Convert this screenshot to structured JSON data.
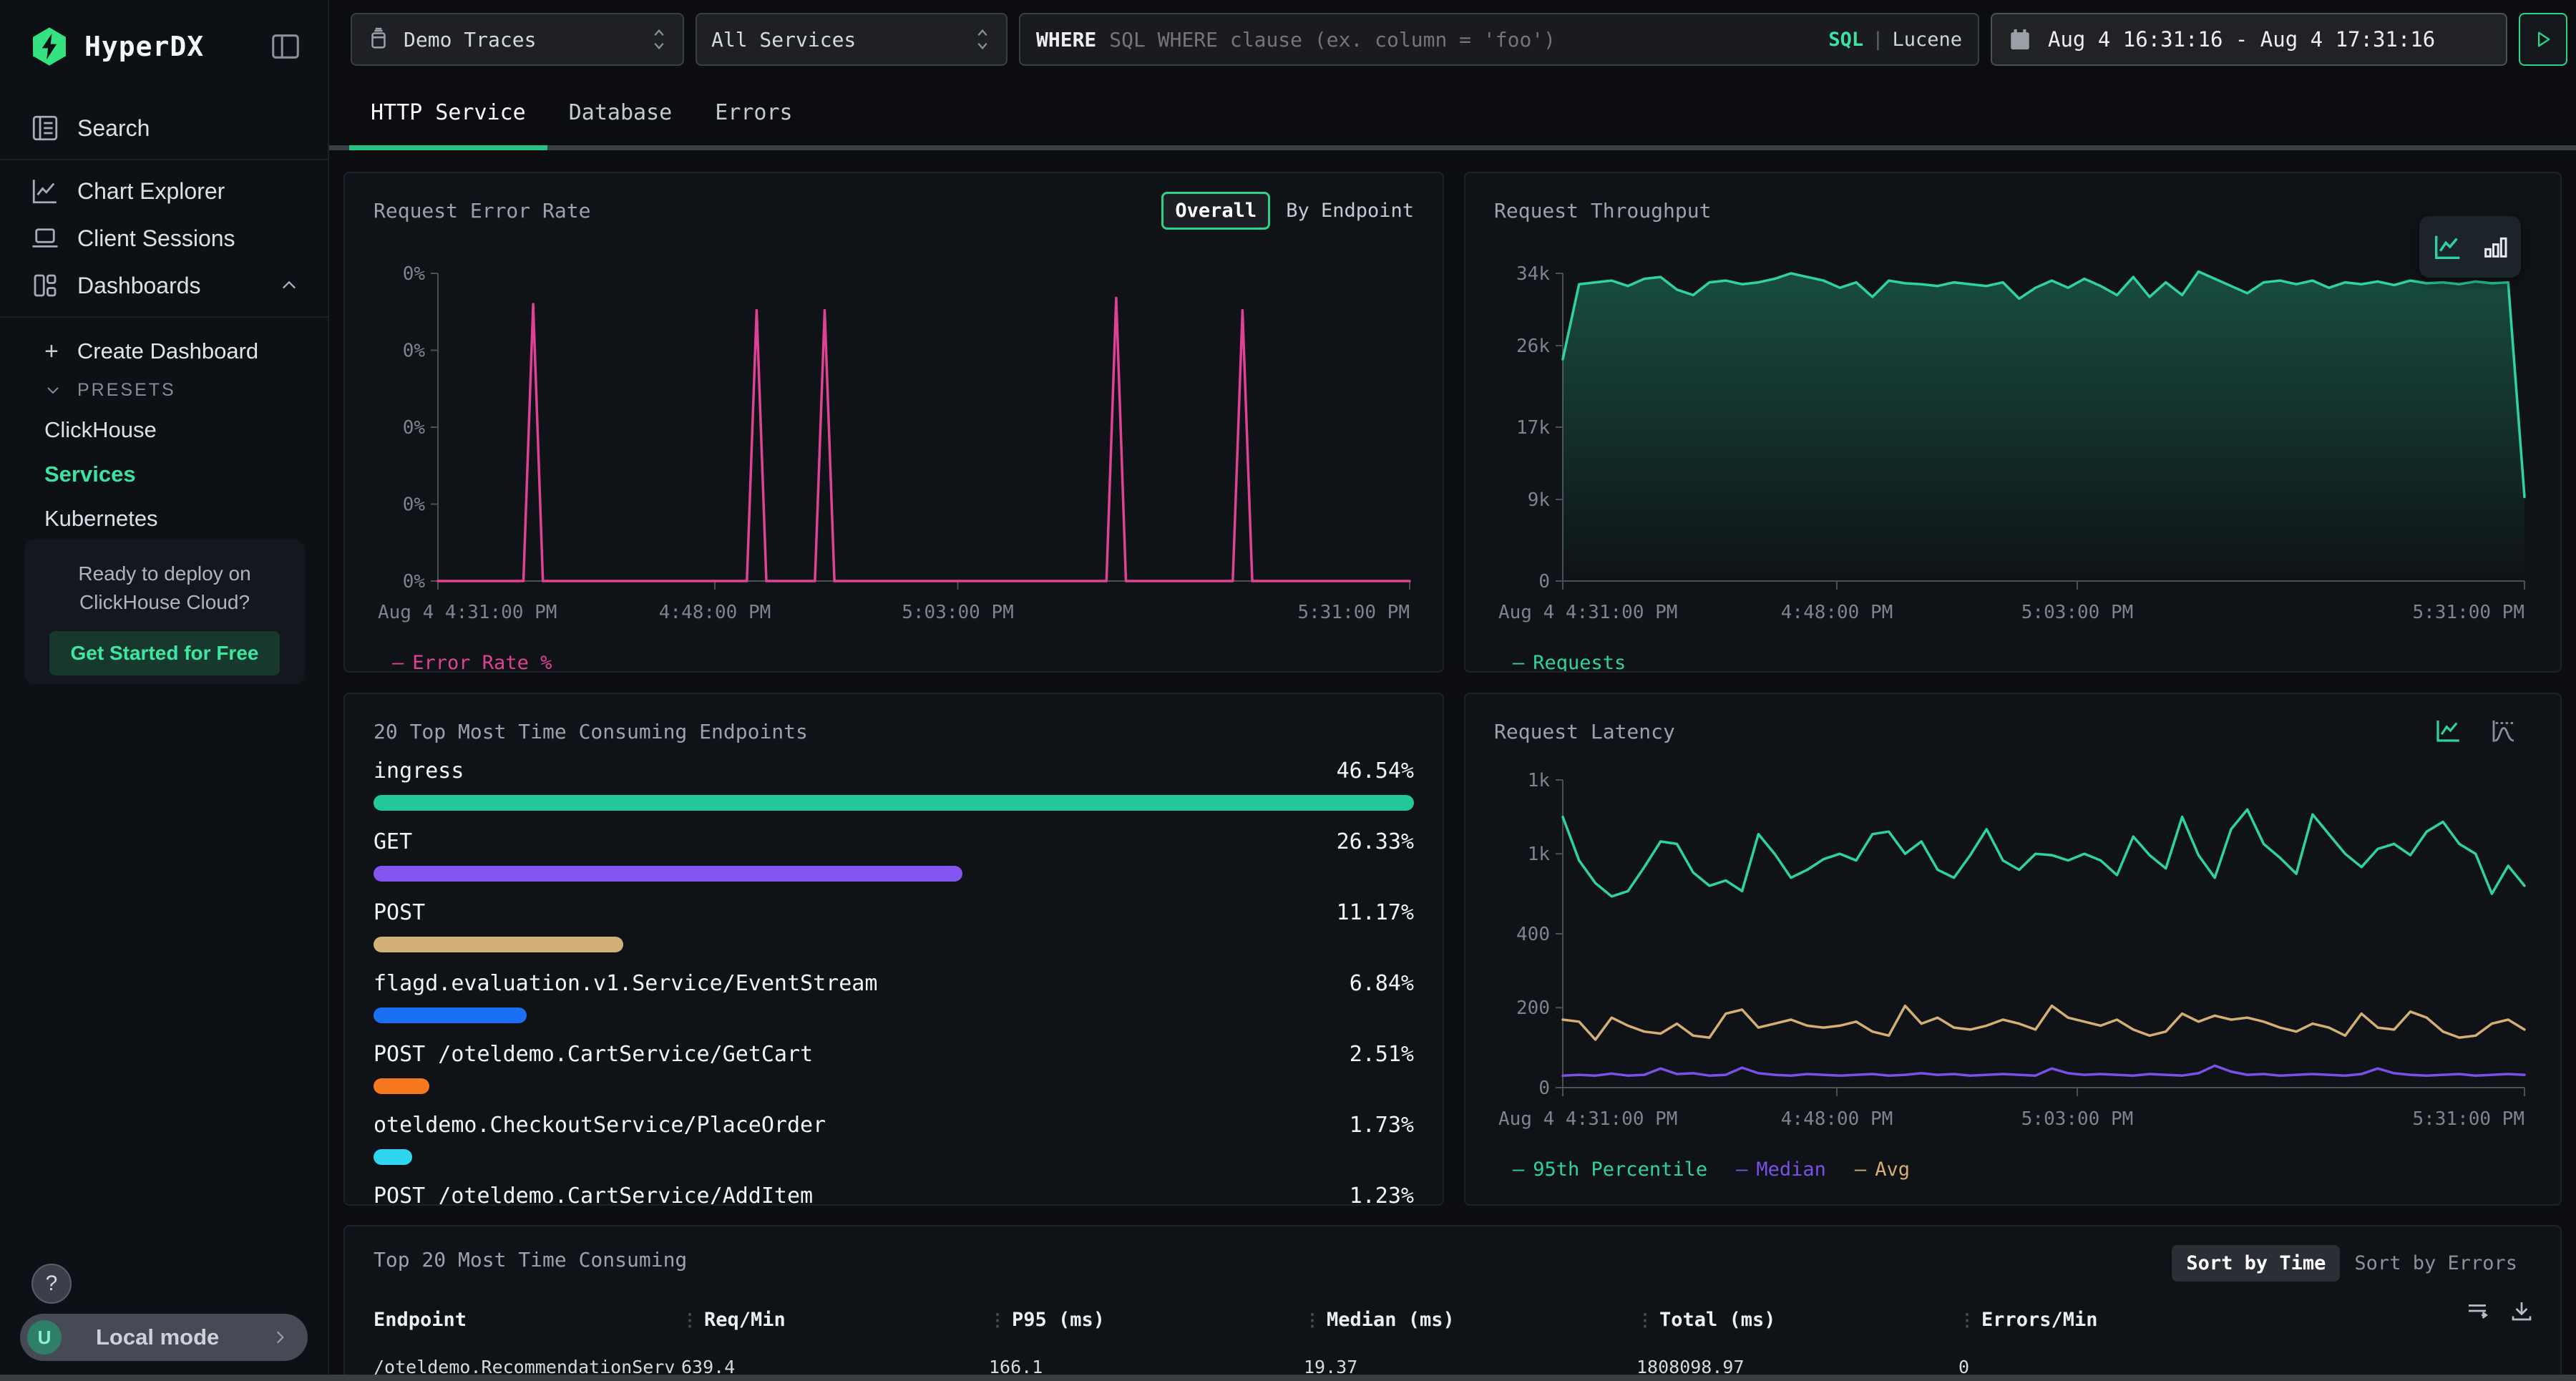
{
  "brand": {
    "name": "HyperDX"
  },
  "colors": {
    "accent": "#2bd389",
    "accent_text": "#3be3a2",
    "pink": "#df4294",
    "green_line": "#2dd4a0",
    "gold": "#d4af73",
    "purple": "#7a50e8"
  },
  "sidebar": {
    "nav": [
      {
        "label": "Search"
      },
      {
        "label": "Chart Explorer"
      },
      {
        "label": "Client Sessions"
      },
      {
        "label": "Dashboards"
      }
    ],
    "plus": "+",
    "create_label": "Create Dashboard",
    "presets_label": "PRESETS",
    "presets": [
      {
        "label": "ClickHouse",
        "active": false
      },
      {
        "label": "Services",
        "active": true
      },
      {
        "label": "Kubernetes",
        "active": false
      }
    ],
    "promo": {
      "line1": "Ready to deploy on",
      "line2": "ClickHouse Cloud?",
      "cta": "Get Started for Free"
    },
    "help": "?",
    "user_initial": "U",
    "user_label": "Local mode"
  },
  "topbar": {
    "source_select": "Demo Traces",
    "service_select": "All Services",
    "where_badge": "WHERE",
    "search_placeholder": "SQL WHERE clause (ex. column = 'foo')",
    "lang_sql": "SQL",
    "lang_divider": "|",
    "lang_lucene": "Lucene",
    "time_range": "Aug 4 16:31:16 - Aug 4 17:31:16"
  },
  "tabs": [
    {
      "label": "HTTP Service",
      "active": true
    },
    {
      "label": "Database",
      "active": false
    },
    {
      "label": "Errors",
      "active": false
    }
  ],
  "chart_data": [
    {
      "id": "error-rate",
      "type": "line",
      "title": "Request Error Rate",
      "controls": [
        "Overall",
        "By Endpoint"
      ],
      "ylim": [
        0,
        100
      ],
      "yticks": [
        {
          "pos": 1,
          "label": "0%"
        },
        {
          "pos": 0.75,
          "label": "0%"
        },
        {
          "pos": 0.5,
          "label": "0%"
        },
        {
          "pos": 0.25,
          "label": "0%"
        },
        {
          "pos": 0,
          "label": "0%"
        }
      ],
      "xticks": [
        {
          "pos": 0,
          "label": "Aug 4 4:31:00 PM",
          "align": "start"
        },
        {
          "pos": 0.285,
          "label": "4:48:00 PM",
          "align": "middle"
        },
        {
          "pos": 0.535,
          "label": "5:03:00 PM",
          "align": "middle"
        },
        {
          "pos": 1,
          "label": "5:31:00 PM",
          "align": "end"
        }
      ],
      "series": [
        {
          "name": "Error Rate %",
          "color": "#df4294",
          "x": [
            0,
            0.088,
            0.098,
            0.108,
            0.318,
            0.328,
            0.338,
            0.388,
            0.398,
            0.408,
            0.688,
            0.698,
            0.708,
            0.818,
            0.828,
            0.838,
            1
          ],
          "values": [
            0,
            0,
            90,
            0,
            0,
            88,
            0,
            0,
            88,
            0,
            0,
            92,
            0,
            0,
            88,
            0,
            0
          ]
        }
      ],
      "legend": [
        {
          "label": "Error Rate %",
          "color": "#df4294"
        }
      ]
    },
    {
      "id": "throughput",
      "type": "line",
      "title": "Request Throughput",
      "ylim": [
        0,
        34
      ],
      "yticks": [
        {
          "pos": 1,
          "label": "34k"
        },
        {
          "pos": 0.765,
          "label": "26k"
        },
        {
          "pos": 0.5,
          "label": "17k"
        },
        {
          "pos": 0.265,
          "label": "9k"
        },
        {
          "pos": 0,
          "label": "0"
        }
      ],
      "xticks": [
        {
          "pos": 0,
          "label": "Aug 4 4:31:00 PM",
          "align": "start"
        },
        {
          "pos": 0.285,
          "label": "4:48:00 PM",
          "align": "middle"
        },
        {
          "pos": 0.535,
          "label": "5:03:00 PM",
          "align": "middle"
        },
        {
          "pos": 1,
          "label": "5:31:00 PM",
          "align": "end"
        }
      ],
      "series": [
        {
          "name": "Requests",
          "color": "#2dd4a0",
          "fill": true,
          "values": [
            24.5,
            32.8,
            33,
            33.2,
            32.6,
            33.4,
            33.6,
            32.2,
            31.6,
            33,
            33.2,
            32.8,
            33,
            33.4,
            34,
            33.6,
            33.2,
            32.4,
            33,
            31.4,
            33.2,
            32.9,
            32.8,
            32.6,
            33,
            32.8,
            32.6,
            33,
            31.2,
            32.4,
            33.2,
            32.4,
            33.4,
            32.6,
            31.6,
            33.6,
            31.4,
            33,
            31.6,
            34.2,
            33.4,
            32.6,
            31.8,
            33,
            33.2,
            32.8,
            33.2,
            32.4,
            33,
            32.8,
            33.1,
            32.7,
            33.2,
            32.9,
            33,
            32.8,
            33.1,
            32.9,
            33,
            9.3
          ]
        }
      ],
      "legend": [
        {
          "label": "Requests",
          "color": "#2dd4a0"
        }
      ]
    },
    {
      "id": "latency",
      "type": "line",
      "title": "Request Latency",
      "ylim": [
        0,
        1300
      ],
      "anchors": [
        [
          0,
          0
        ],
        [
          200,
          0.26
        ],
        [
          400,
          0.5
        ],
        [
          1000,
          0.76
        ],
        [
          1300,
          1
        ]
      ],
      "yticks": [
        {
          "pos": 1,
          "label": "1k"
        },
        {
          "pos": 0.76,
          "label": "1k"
        },
        {
          "pos": 0.5,
          "label": "400"
        },
        {
          "pos": 0.26,
          "label": "200"
        },
        {
          "pos": 0,
          "label": "0"
        }
      ],
      "xticks": [
        {
          "pos": 0,
          "label": "Aug 4 4:31:00 PM",
          "align": "start"
        },
        {
          "pos": 0.285,
          "label": "4:48:00 PM",
          "align": "middle"
        },
        {
          "pos": 0.535,
          "label": "5:03:00 PM",
          "align": "middle"
        },
        {
          "pos": 1,
          "label": "5:31:00 PM",
          "align": "end"
        }
      ],
      "series": [
        {
          "name": "95th Percentile",
          "color": "#2dd4a0",
          "values": [
            1150,
            950,
            780,
            680,
            720,
            900,
            1050,
            1040,
            860,
            760,
            800,
            720,
            1080,
            1000,
            820,
            880,
            960,
            1000,
            950,
            1080,
            1090,
            1000,
            1050,
            880,
            820,
            990,
            1100,
            950,
            880,
            1000,
            990,
            950,
            1000,
            950,
            840,
            1070,
            990,
            890,
            1150,
            990,
            820,
            1100,
            1180,
            1040,
            970,
            850,
            1160,
            1080,
            1000,
            900,
            1020,
            1040,
            990,
            1090,
            1130,
            1040,
            1000,
            700,
            910,
            760
          ]
        },
        {
          "name": "Median",
          "color": "#7a50e8",
          "values": [
            30,
            32,
            30,
            35,
            30,
            32,
            48,
            34,
            36,
            30,
            32,
            50,
            36,
            32,
            30,
            34,
            32,
            30,
            32,
            34,
            30,
            32,
            36,
            32,
            34,
            30,
            32,
            34,
            32,
            30,
            48,
            36,
            32,
            34,
            32,
            30,
            34,
            32,
            30,
            36,
            55,
            40,
            32,
            34,
            30,
            32,
            34,
            32,
            30,
            34,
            48,
            36,
            32,
            30,
            32,
            34,
            30,
            32,
            34,
            32
          ]
        },
        {
          "name": "Avg",
          "color": "#d4af73",
          "values": [
            170,
            165,
            120,
            175,
            155,
            140,
            135,
            160,
            130,
            125,
            185,
            195,
            150,
            160,
            170,
            155,
            150,
            155,
            165,
            140,
            130,
            205,
            160,
            175,
            150,
            145,
            155,
            170,
            160,
            145,
            205,
            175,
            165,
            155,
            170,
            145,
            130,
            140,
            185,
            165,
            180,
            170,
            175,
            165,
            150,
            140,
            160,
            150,
            130,
            185,
            150,
            145,
            190,
            175,
            140,
            125,
            130,
            160,
            170,
            145
          ]
        }
      ],
      "legend": [
        {
          "label": "95th Percentile",
          "color": "#2dd4a0"
        },
        {
          "label": "Median",
          "color": "#7a50e8"
        },
        {
          "label": "Avg",
          "color": "#d4af73"
        }
      ]
    },
    {
      "id": "top-endpoints",
      "type": "bar",
      "title": "20 Top Most Time Consuming Endpoints",
      "max": 46.54,
      "rows": [
        {
          "label": "ingress",
          "value": 46.54,
          "display": "46.54%",
          "color": "#20c997"
        },
        {
          "label": "GET",
          "value": 26.33,
          "display": "26.33%",
          "color": "#8555f2"
        },
        {
          "label": "POST",
          "value": 11.17,
          "display": "11.17%",
          "color": "#d3b077"
        },
        {
          "label": "flagd.evaluation.v1.Service/EventStream",
          "value": 6.84,
          "display": "6.84%",
          "color": "#1b6ff2"
        },
        {
          "label": "POST /oteldemo.CartService/GetCart",
          "value": 2.51,
          "display": "2.51%",
          "color": "#f8781f"
        },
        {
          "label": "oteldemo.CheckoutService/PlaceOrder",
          "value": 1.73,
          "display": "1.73%",
          "color": "#30d5f0"
        },
        {
          "label": "POST /oteldemo.CartService/AddItem",
          "value": 1.23,
          "display": "1.23%",
          "color": "#20c997"
        }
      ]
    },
    {
      "id": "endpoints-table",
      "type": "table",
      "title": "Top 20 Most Time Consuming",
      "sort": [
        {
          "label": "Sort by Time",
          "active": true
        },
        {
          "label": "Sort by Errors",
          "active": false
        }
      ],
      "columns": [
        "Endpoint",
        "Req/Min",
        "P95 (ms)",
        "Median (ms)",
        "Total (ms)",
        "Errors/Min"
      ],
      "rows": [
        [
          "/oteldemo.RecommendationServ",
          "639.4",
          "166.1",
          "19.37",
          "1808098.97",
          "0"
        ]
      ]
    }
  ]
}
